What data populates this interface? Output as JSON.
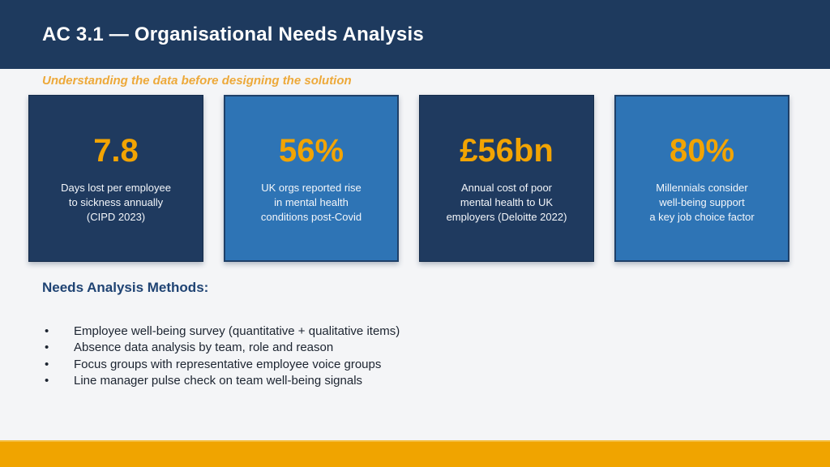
{
  "slide": {
    "title": "AC 3.1 — Organisational Needs Analysis",
    "subtitle": "Understanding the data before designing the solution"
  },
  "stat_cards": [
    {
      "value": "7.8",
      "lines": [
        "Days lost per employee",
        "to sickness annually",
        "(CIPD 2023)"
      ]
    },
    {
      "value": "56%",
      "lines": [
        "UK orgs reported rise",
        "in mental health",
        "conditions post-Covid"
      ]
    },
    {
      "value": "£56bn",
      "lines": [
        "Annual cost of poor",
        "mental health to UK",
        "employers (Deloitte 2022)"
      ]
    },
    {
      "value": "80%",
      "lines": [
        "Millennials consider",
        "well-being support",
        "a key job choice factor"
      ]
    }
  ],
  "methods": {
    "heading": "Needs Analysis Methods:",
    "bullet_glyph": "•",
    "items": [
      "Employee well-being survey (quantitative + qualitative items)",
      "Absence data analysis by team, role and reason",
      "Focus groups with representative employee voice groups",
      "Line manager pulse check on team well-being signals"
    ]
  },
  "colors": {
    "header_navy": "#1e3a5e",
    "card_dark_navy": "#1f3a5f",
    "card_blue": "#2e74b5",
    "accent_orange": "#f2a403",
    "subtitle_orange": "#eda93a",
    "footer_orange": "#f0a400",
    "background": "#f4f5f7"
  }
}
